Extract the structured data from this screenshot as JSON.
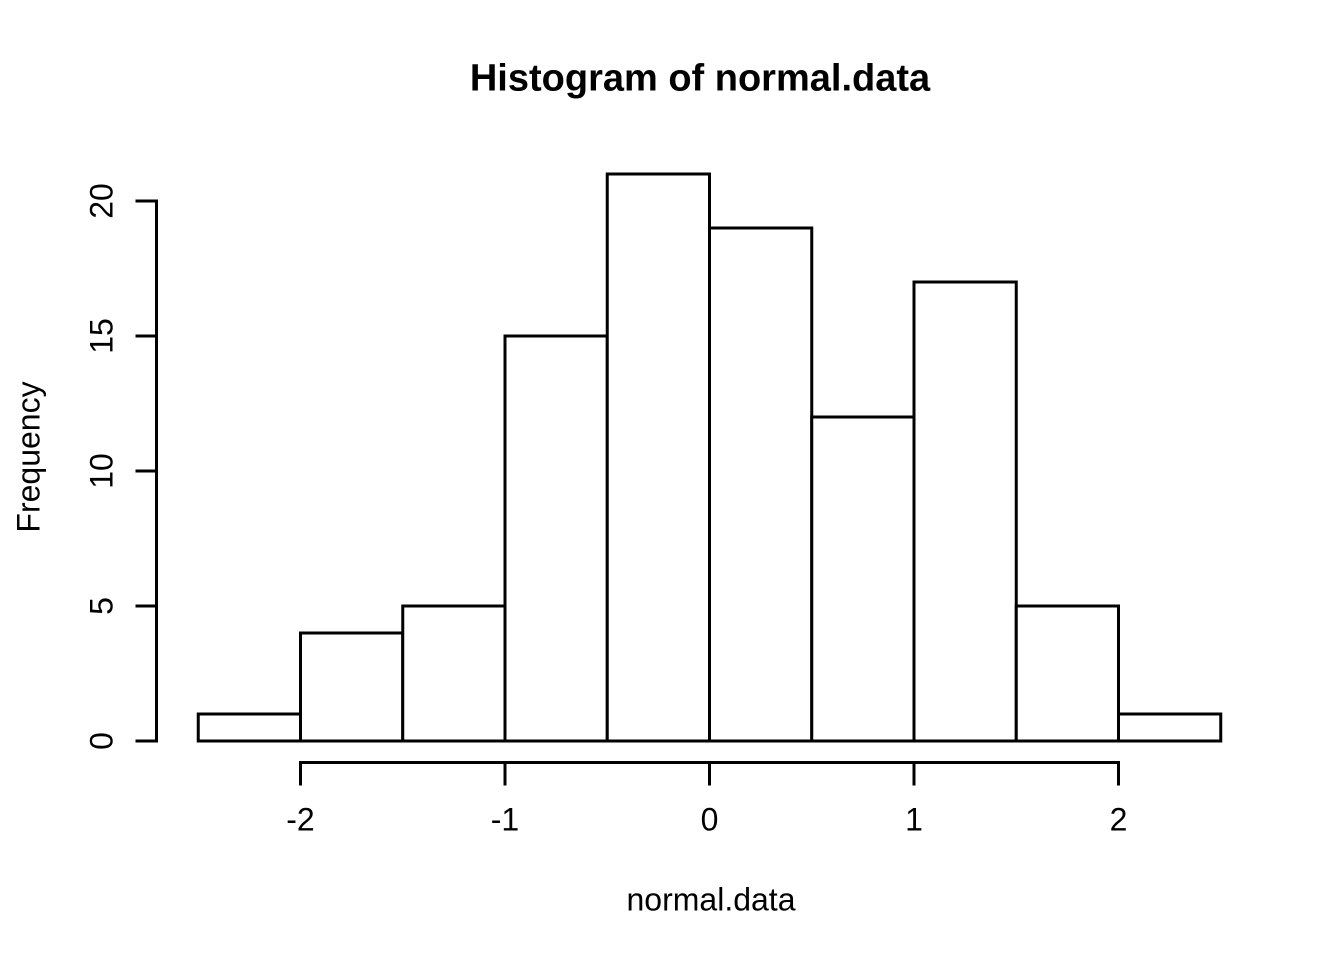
{
  "chart_data": {
    "type": "bar",
    "subtype": "histogram",
    "title": "Histogram of normal.data",
    "xlabel": "normal.data",
    "ylabel": "Frequency",
    "breaks": [
      -2.5,
      -2.0,
      -1.5,
      -1.0,
      -0.5,
      0.0,
      0.5,
      1.0,
      1.5,
      2.0,
      2.5
    ],
    "counts": [
      1,
      4,
      5,
      15,
      21,
      19,
      12,
      17,
      5,
      1
    ],
    "x_ticks": [
      -2,
      -1,
      0,
      1,
      2
    ],
    "y_ticks": [
      0,
      5,
      10,
      15,
      20
    ],
    "xlim": [
      -2.5,
      2.5
    ],
    "ylim": [
      0,
      21
    ],
    "grid": "off",
    "legend": "none",
    "bar_fill": "#ffffff",
    "line_color": "#000000",
    "background": "#ffffff"
  }
}
